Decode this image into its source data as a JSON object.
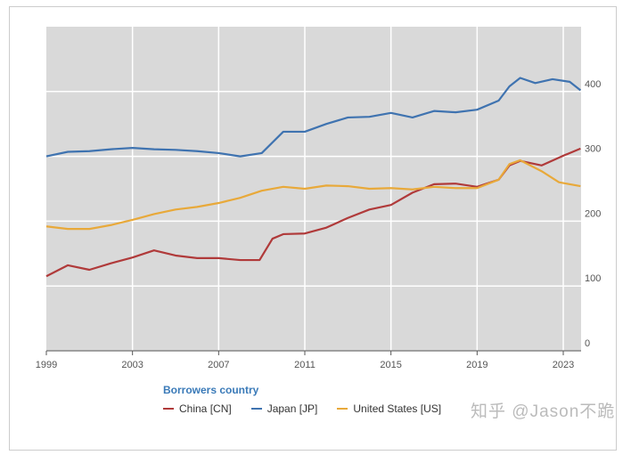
{
  "chart_data": {
    "type": "line",
    "title": "",
    "xlabel": "",
    "ylabel": "",
    "xlim": [
      1999,
      2023.8
    ],
    "ylim": [
      0,
      500
    ],
    "grid": true,
    "x_ticks": [
      "1999",
      "2003",
      "2007",
      "2011",
      "2015",
      "2019",
      "2023"
    ],
    "y_ticks": [
      "0",
      "100",
      "200",
      "300",
      "400"
    ],
    "legend_title": "Borrowers country",
    "legend_position": "bottom",
    "series": [
      {
        "name": "China [CN]",
        "color": "#b03a3a",
        "points": [
          [
            1999,
            115
          ],
          [
            2000,
            132
          ],
          [
            2001,
            125
          ],
          [
            2002,
            135
          ],
          [
            2003,
            144
          ],
          [
            2004,
            155
          ],
          [
            2005,
            147
          ],
          [
            2006,
            143
          ],
          [
            2007,
            143
          ],
          [
            2008,
            140
          ],
          [
            2008.9,
            140
          ],
          [
            2009.5,
            173
          ],
          [
            2010,
            180
          ],
          [
            2011,
            181
          ],
          [
            2012,
            190
          ],
          [
            2013,
            205
          ],
          [
            2014,
            218
          ],
          [
            2015,
            225
          ],
          [
            2016,
            244
          ],
          [
            2017,
            257
          ],
          [
            2018,
            258
          ],
          [
            2019,
            253
          ],
          [
            2020,
            264
          ],
          [
            2020.5,
            286
          ],
          [
            2021,
            293
          ],
          [
            2022,
            286
          ],
          [
            2023,
            301
          ],
          [
            2023.8,
            312
          ]
        ]
      },
      {
        "name": "Japan [JP]",
        "color": "#3f73b0",
        "points": [
          [
            1999,
            300
          ],
          [
            2000,
            307
          ],
          [
            2001,
            308
          ],
          [
            2002,
            311
          ],
          [
            2003,
            313
          ],
          [
            2004,
            311
          ],
          [
            2005,
            310
          ],
          [
            2006,
            308
          ],
          [
            2007,
            305
          ],
          [
            2008,
            300
          ],
          [
            2009,
            305
          ],
          [
            2010,
            338
          ],
          [
            2011,
            338
          ],
          [
            2012,
            350
          ],
          [
            2013,
            360
          ],
          [
            2014,
            361
          ],
          [
            2015,
            367
          ],
          [
            2016,
            360
          ],
          [
            2017,
            370
          ],
          [
            2018,
            368
          ],
          [
            2019,
            372
          ],
          [
            2020,
            386
          ],
          [
            2020.5,
            408
          ],
          [
            2021,
            421
          ],
          [
            2021.7,
            413
          ],
          [
            2022.5,
            419
          ],
          [
            2023.3,
            415
          ],
          [
            2023.8,
            402
          ]
        ]
      },
      {
        "name": "United States [US]",
        "color": "#e8a93a",
        "points": [
          [
            1999,
            192
          ],
          [
            2000,
            188
          ],
          [
            2001,
            188
          ],
          [
            2002,
            194
          ],
          [
            2003,
            202
          ],
          [
            2004,
            211
          ],
          [
            2005,
            218
          ],
          [
            2006,
            222
          ],
          [
            2007,
            228
          ],
          [
            2008,
            236
          ],
          [
            2009,
            247
          ],
          [
            2010,
            253
          ],
          [
            2011,
            250
          ],
          [
            2012,
            255
          ],
          [
            2013,
            254
          ],
          [
            2014,
            250
          ],
          [
            2015,
            251
          ],
          [
            2016,
            249
          ],
          [
            2017,
            253
          ],
          [
            2018,
            251
          ],
          [
            2019,
            251
          ],
          [
            2020,
            264
          ],
          [
            2020.5,
            288
          ],
          [
            2021,
            294
          ],
          [
            2022,
            277
          ],
          [
            2022.8,
            260
          ],
          [
            2023.8,
            254
          ]
        ]
      }
    ]
  },
  "watermark": "知乎 @Jason不跪"
}
